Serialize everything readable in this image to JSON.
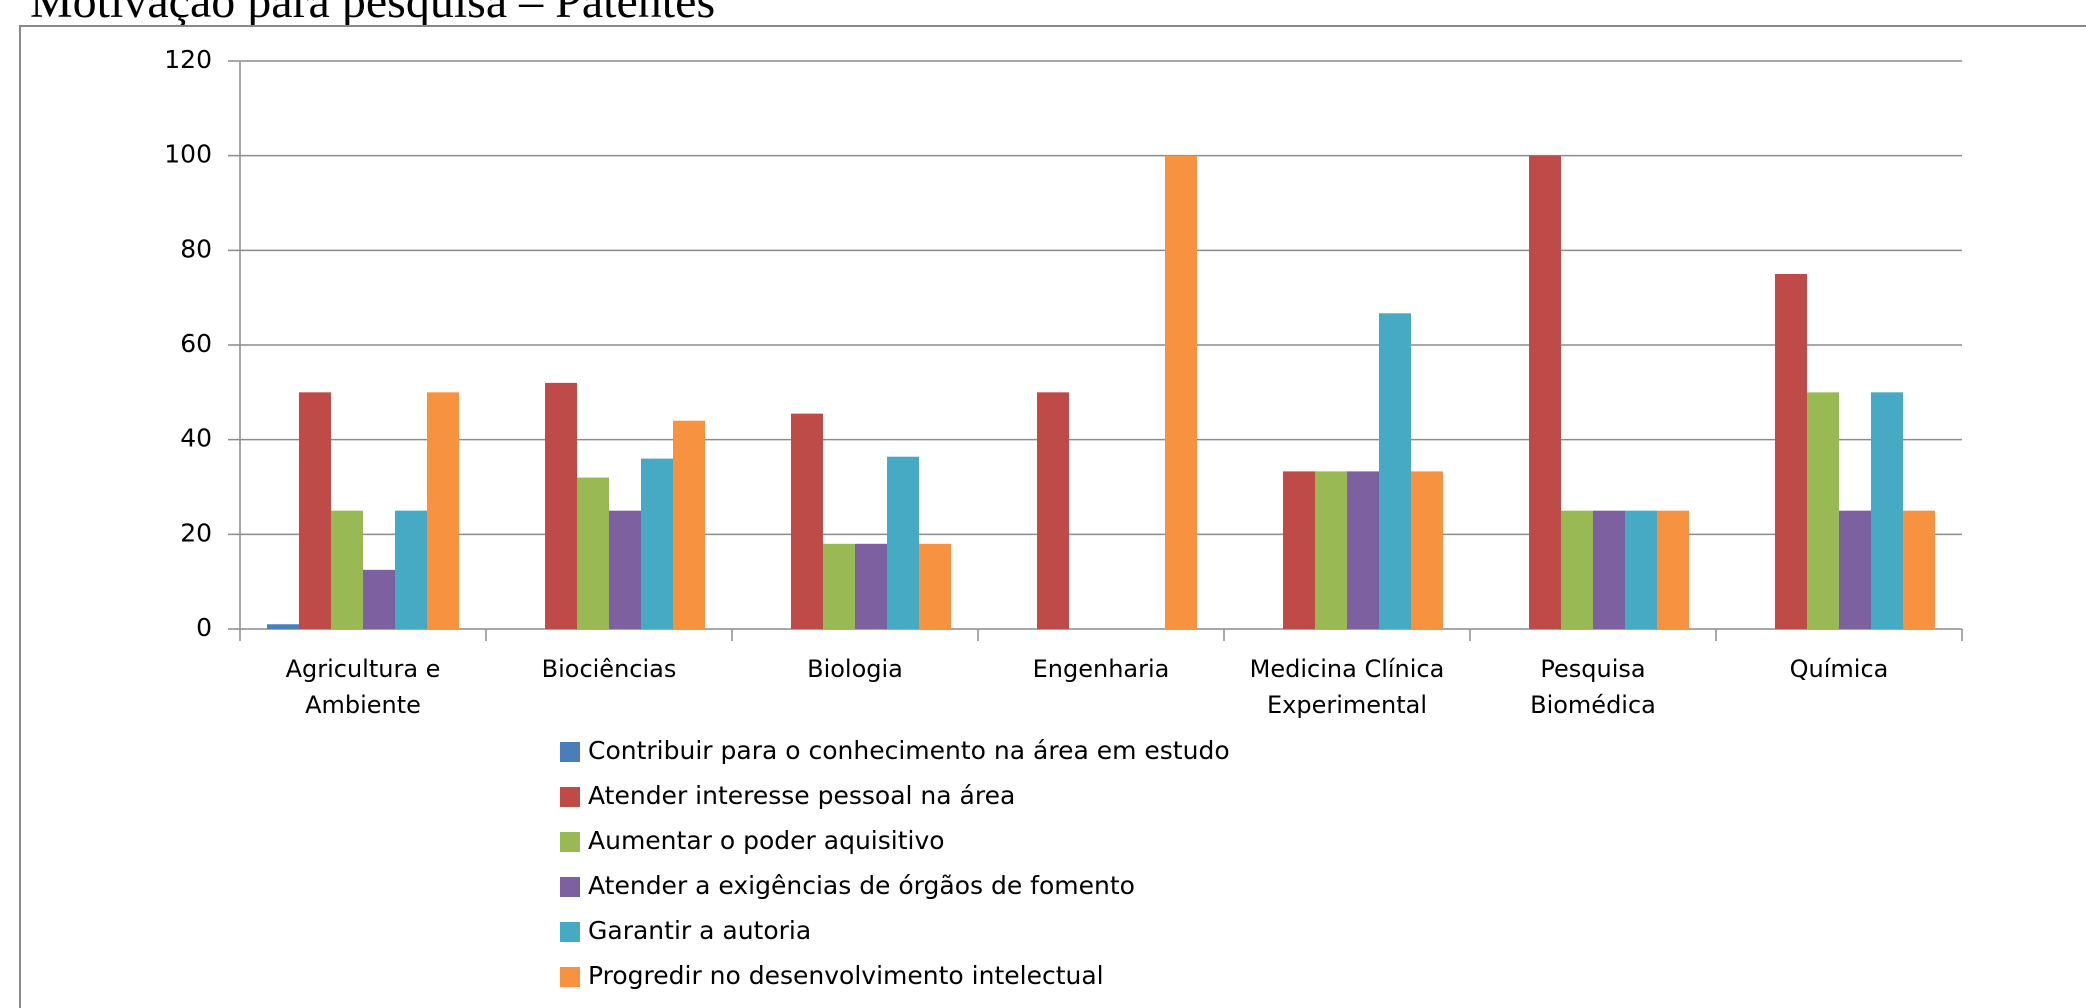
{
  "chart_data": {
    "type": "bar",
    "title": "Motivação para pesquisa – Patentes",
    "categories": [
      "Agricultura e Ambiente",
      "Biociências",
      "Biologia",
      "Engenharia",
      "Medicina Clínica Experimental",
      "Pesquisa Biomédica",
      "Química"
    ],
    "series": [
      {
        "name": "Contribuir para o conhecimento na área em estudo",
        "color": "#4a7ebb",
        "values": [
          1,
          0,
          0,
          0,
          0,
          0,
          0
        ]
      },
      {
        "name": "Atender interesse pessoal na área",
        "color": "#be4b48",
        "values": [
          50,
          52,
          45.5,
          50,
          33.3,
          100,
          75
        ]
      },
      {
        "name": "Aumentar o poder aquisitivo",
        "color": "#98b954",
        "values": [
          25,
          32,
          18,
          0,
          33.3,
          25,
          50
        ]
      },
      {
        "name": "Atender a exigências de órgãos de fomento",
        "color": "#7d60a0",
        "values": [
          12.5,
          25,
          18,
          0,
          33.3,
          25,
          25
        ]
      },
      {
        "name": "Garantir a autoria",
        "color": "#46aac5",
        "values": [
          25,
          36,
          36.4,
          0,
          66.7,
          25,
          50
        ]
      },
      {
        "name": "Progredir no desenvolvimento intelectual",
        "color": "#f69240",
        "values": [
          50,
          44,
          18,
          100,
          33.3,
          25,
          25
        ]
      }
    ],
    "ylim": [
      0,
      120
    ],
    "yticks": [
      0,
      20,
      40,
      60,
      80,
      100,
      120
    ],
    "grid": true,
    "legend": "bottom"
  }
}
